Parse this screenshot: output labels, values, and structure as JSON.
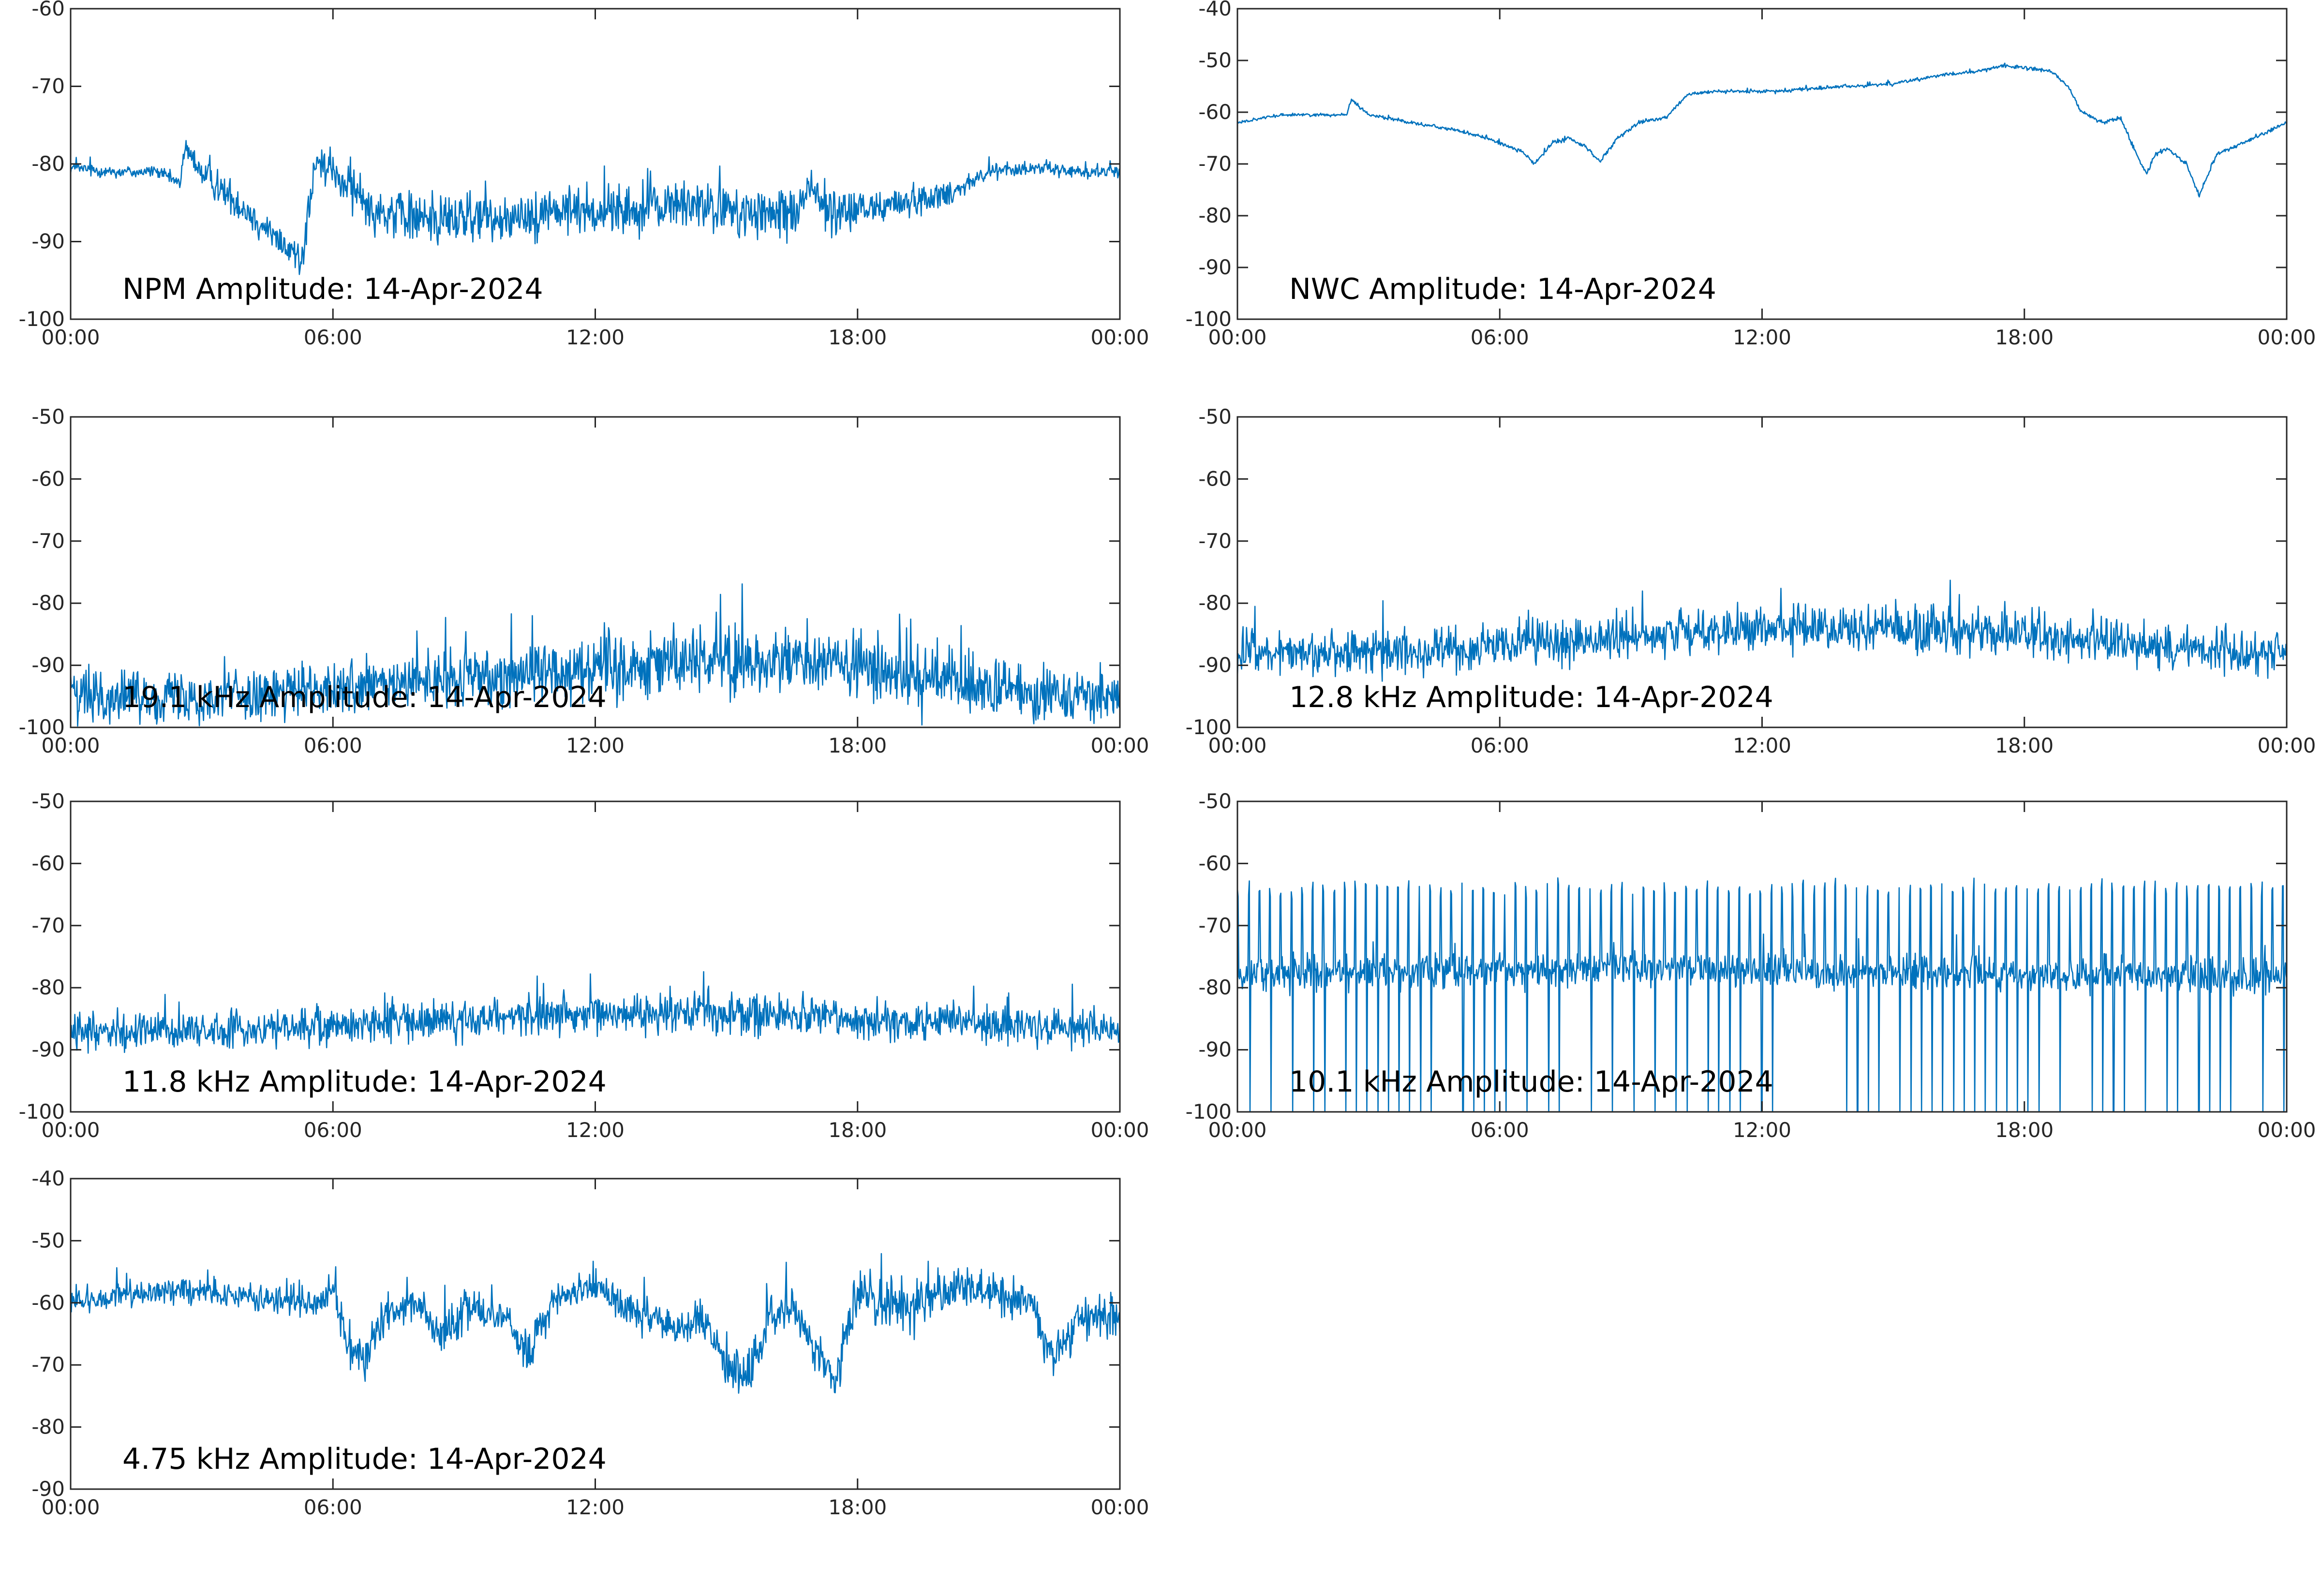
{
  "figure": {
    "background": "#ffffff",
    "line_color": "#0072bd",
    "axis_color": "#262626"
  },
  "chart_data": [
    {
      "type": "line",
      "title": "NPM Amplitude: 14-Apr-2024",
      "x_ticks": [
        "00:00",
        "06:00",
        "12:00",
        "18:00",
        "00:00"
      ],
      "y_ticks": [
        -60,
        -70,
        -80,
        -90,
        -100
      ],
      "ylim": [
        -100,
        -60
      ],
      "xlim_hours": [
        0,
        24
      ],
      "grid": false,
      "series": [
        {
          "x_hours": [
            0,
            1,
            2,
            2.5,
            2.6,
            3,
            4,
            5,
            5.3,
            5.6,
            6,
            7,
            8,
            9,
            10,
            11,
            12,
            13,
            14,
            15,
            16,
            16.5,
            17,
            17.4,
            17.8,
            18,
            19,
            20,
            21,
            22,
            23,
            24
          ],
          "values": [
            -80.5,
            -81,
            -81,
            -82.5,
            -78,
            -81,
            -86,
            -91,
            -92,
            -80,
            -81,
            -86,
            -87,
            -87,
            -87,
            -86,
            -86,
            -86,
            -85,
            -86,
            -87,
            -86,
            -83,
            -87,
            -86,
            -86,
            -85,
            -84,
            -81,
            -80.5,
            -81,
            -81
          ],
          "noise_spread": [
            1.2,
            1.2,
            1.2,
            1.5,
            1.5,
            3,
            3,
            3,
            4,
            3,
            4,
            5,
            5,
            5,
            4.5,
            4.5,
            4.5,
            4.5,
            4.5,
            5,
            5,
            5,
            4,
            5,
            5,
            4,
            3,
            2.5,
            1.5,
            1.2,
            1.2,
            1.2
          ]
        }
      ]
    },
    {
      "type": "line",
      "title": "NWC Amplitude: 14-Apr-2024",
      "x_ticks": [
        "00:00",
        "06:00",
        "12:00",
        "18:00",
        "00:00"
      ],
      "y_ticks": [
        -40,
        -50,
        -60,
        -70,
        -80,
        -90,
        -100
      ],
      "ylim": [
        -100,
        -40
      ],
      "xlim_hours": [
        0,
        24
      ],
      "grid": false,
      "series": [
        {
          "x_hours": [
            0,
            1,
            2.5,
            2.6,
            3,
            4,
            5,
            5.5,
            6,
            6.5,
            6.8,
            7.2,
            7.6,
            8,
            8.3,
            8.7,
            9.2,
            9.8,
            10.3,
            11,
            12,
            13,
            14,
            15,
            16,
            17,
            17.5,
            18,
            18.6,
            19,
            19.3,
            19.8,
            20.2,
            20.5,
            20.8,
            21,
            21.3,
            21.7,
            22,
            22.4,
            23,
            24
          ],
          "values": [
            -62,
            -60.5,
            -60.5,
            -57.5,
            -60.5,
            -62,
            -63.5,
            -64.5,
            -66,
            -67.5,
            -70,
            -66,
            -65,
            -67,
            -69.5,
            -65,
            -62,
            -61,
            -56.5,
            -56,
            -56,
            -55.5,
            -55,
            -54.5,
            -53,
            -52,
            -51,
            -51.5,
            -52,
            -55,
            -60,
            -62,
            -61,
            -67,
            -72,
            -68,
            -67,
            -70,
            -76,
            -68,
            -66,
            -62
          ],
          "noise_spread": [
            0.4,
            0.4,
            0.4,
            0.5,
            0.5,
            0.5,
            0.5,
            0.5,
            0.5,
            0.5,
            0.6,
            0.6,
            0.6,
            0.6,
            0.6,
            0.6,
            0.6,
            0.5,
            0.5,
            0.5,
            0.5,
            0.5,
            0.5,
            0.5,
            0.5,
            0.5,
            0.5,
            0.5,
            0.5,
            0.5,
            0.6,
            0.6,
            0.6,
            0.6,
            0.6,
            0.6,
            0.6,
            0.6,
            0.6,
            0.6,
            0.5,
            0.5
          ]
        }
      ]
    },
    {
      "type": "line",
      "title": "19.1 kHz Amplitude: 14-Apr-2024",
      "x_ticks": [
        "00:00",
        "06:00",
        "12:00",
        "18:00",
        "00:00"
      ],
      "y_ticks": [
        -50,
        -60,
        -70,
        -80,
        -90,
        -100
      ],
      "ylim": [
        -100,
        -50
      ],
      "xlim_hours": [
        0,
        24
      ],
      "grid": false,
      "series": [
        {
          "x_hours": [
            0,
            3,
            6,
            9,
            12,
            15,
            18,
            21,
            24
          ],
          "values": [
            -95,
            -95,
            -94,
            -92,
            -90,
            -89,
            -90,
            -94,
            -95
          ],
          "noise_spread": [
            6,
            6,
            6,
            7,
            8,
            8,
            8,
            7,
            6
          ]
        }
      ]
    },
    {
      "type": "line",
      "title": "12.8 kHz Amplitude: 14-Apr-2024",
      "x_ticks": [
        "00:00",
        "06:00",
        "12:00",
        "18:00",
        "00:00"
      ],
      "y_ticks": [
        -50,
        -60,
        -70,
        -80,
        -90,
        -100
      ],
      "ylim": [
        -100,
        -50
      ],
      "xlim_hours": [
        0,
        24
      ],
      "grid": false,
      "series": [
        {
          "x_hours": [
            0,
            3,
            6,
            9,
            12,
            15,
            18,
            21,
            24
          ],
          "values": [
            -88,
            -88,
            -87,
            -85.5,
            -84,
            -84,
            -85,
            -87,
            -88
          ],
          "noise_spread": [
            5,
            5,
            5,
            5,
            5,
            5.5,
            5.5,
            5,
            5
          ]
        }
      ]
    },
    {
      "type": "line",
      "title": "11.8 kHz Amplitude: 14-Apr-2024",
      "x_ticks": [
        "00:00",
        "06:00",
        "12:00",
        "18:00",
        "00:00"
      ],
      "y_ticks": [
        -50,
        -60,
        -70,
        -80,
        -90,
        -100
      ],
      "ylim": [
        -100,
        -50
      ],
      "xlim_hours": [
        0,
        24
      ],
      "grid": false,
      "series": [
        {
          "x_hours": [
            0,
            3,
            6,
            9,
            12,
            15,
            18,
            21,
            24
          ],
          "values": [
            -87,
            -87,
            -86,
            -85,
            -84,
            -84,
            -85,
            -86,
            -87
          ],
          "noise_spread": [
            4.5,
            4.5,
            4.5,
            4.5,
            4.5,
            5,
            4.5,
            4.5,
            4.5
          ]
        }
      ]
    },
    {
      "type": "line",
      "title": "10.1 kHz Amplitude: 14-Apr-2024",
      "x_ticks": [
        "00:00",
        "06:00",
        "12:00",
        "18:00",
        "00:00"
      ],
      "y_ticks": [
        -50,
        -60,
        -70,
        -80,
        -90,
        -100
      ],
      "ylim": [
        -100,
        -50
      ],
      "xlim_hours": [
        0,
        24
      ],
      "grid": false,
      "series": [
        {
          "x_hours": [
            0,
            6,
            12,
            18,
            24
          ],
          "values": [
            -78,
            -77,
            -77,
            -78,
            -78
          ],
          "noise_spread": [
            4,
            4,
            4,
            4,
            4
          ],
          "pulse_high": -64,
          "pulse_low": -100
        }
      ]
    },
    {
      "type": "line",
      "title": "4.75 kHz Amplitude: 14-Apr-2024",
      "x_ticks": [
        "00:00",
        "06:00",
        "12:00",
        "18:00",
        "00:00"
      ],
      "y_ticks": [
        -40,
        -50,
        -60,
        -70,
        -80,
        -90
      ],
      "ylim": [
        -90,
        -40
      ],
      "xlim_hours": [
        0,
        24
      ],
      "grid": false,
      "series": [
        {
          "x_hours": [
            0,
            1,
            2,
            3,
            4,
            5,
            5.6,
            6,
            6.3,
            6.7,
            7.2,
            8,
            8.5,
            9,
            10,
            10.5,
            11,
            12,
            13,
            14,
            14.5,
            15,
            15.5,
            16,
            16.5,
            17,
            17.5,
            18,
            18.5,
            19,
            20,
            21,
            22,
            22.5,
            23,
            24
          ],
          "values": [
            -60,
            -59,
            -58,
            -58,
            -59,
            -60,
            -60,
            -57,
            -67,
            -70,
            -62,
            -60,
            -66,
            -60,
            -63,
            -68,
            -60,
            -57,
            -62,
            -64,
            -63,
            -70,
            -72,
            -62,
            -60,
            -68,
            -72,
            -58,
            -60,
            -61,
            -58,
            -58,
            -60,
            -70,
            -63,
            -63
          ],
          "noise_spread": [
            3,
            3,
            3,
            3,
            3,
            3,
            3,
            4,
            5,
            5,
            4,
            4,
            5,
            4,
            4,
            5,
            4,
            4,
            4,
            5,
            5,
            5,
            6,
            5,
            5,
            5,
            6,
            5,
            5,
            5,
            5,
            5,
            5,
            6,
            5,
            5
          ]
        }
      ]
    }
  ]
}
